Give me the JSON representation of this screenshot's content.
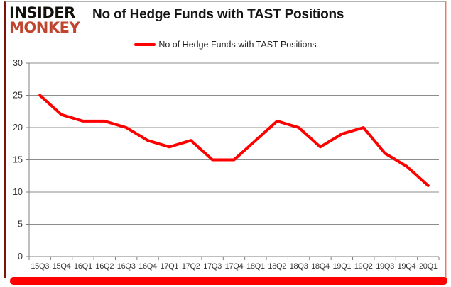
{
  "logo": {
    "line1": "INSIDER",
    "line2": "MONKEY"
  },
  "header": {
    "title": "No of Hedge Funds with TAST Positions"
  },
  "legend": {
    "label": "No of Hedge Funds with TAST Positions"
  },
  "colors": {
    "line": "#ff0000",
    "grid": "#8c8c8c",
    "axis": "#7f7f7f",
    "tick_label": "#333333",
    "logo_accent": "#c0452e",
    "bottom_bar": "#ff0000"
  },
  "chart_data": {
    "type": "line",
    "title": "No of Hedge Funds with TAST Positions",
    "categories": [
      "15Q3",
      "15Q4",
      "16Q1",
      "16Q2",
      "16Q3",
      "16Q4",
      "17Q1",
      "17Q2",
      "17Q3",
      "17Q4",
      "18Q1",
      "18Q2",
      "18Q3",
      "18Q4",
      "19Q1",
      "19Q2",
      "19Q3",
      "19Q4",
      "20Q1"
    ],
    "series": [
      {
        "name": "No of Hedge Funds with TAST Positions",
        "values": [
          25,
          22,
          21,
          21,
          20,
          18,
          17,
          18,
          15,
          15,
          18,
          21,
          20,
          17,
          19,
          20,
          16,
          14,
          11
        ]
      }
    ],
    "xlabel": "",
    "ylabel": "",
    "ylim": [
      0,
      30
    ],
    "ytick_step": 5,
    "grid": true,
    "legend_position": "top"
  }
}
